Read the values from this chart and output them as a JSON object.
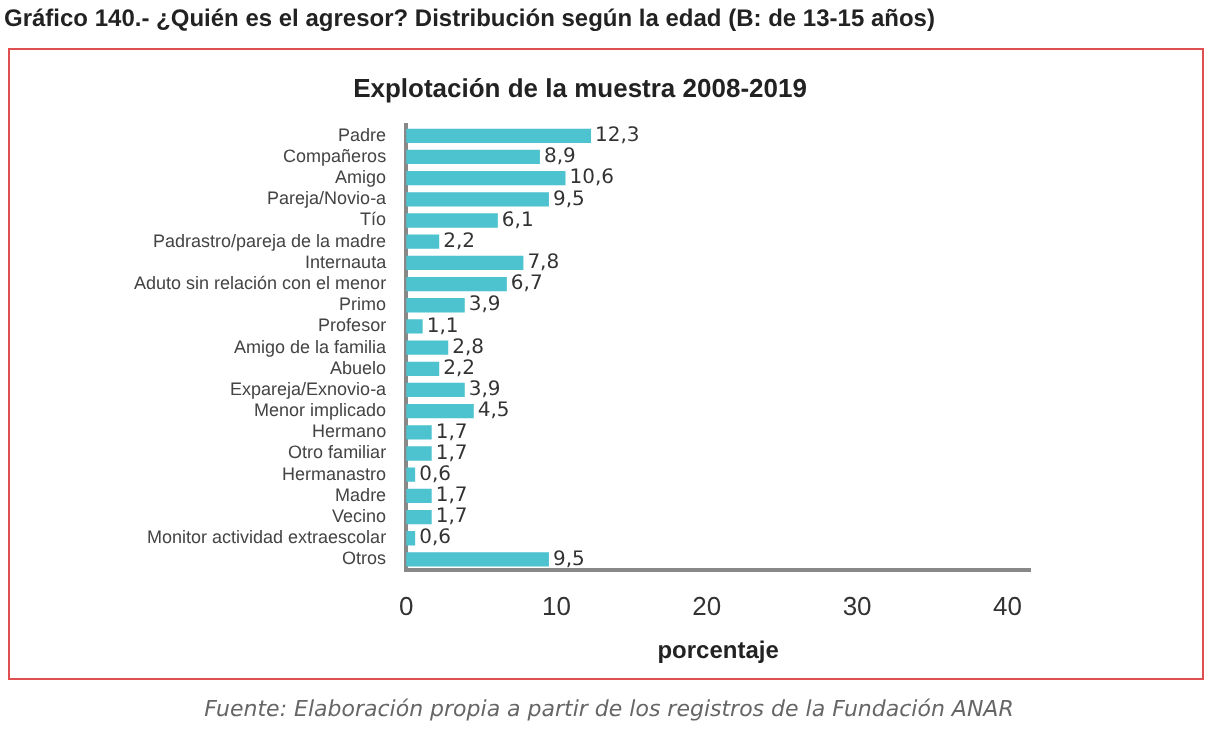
{
  "chart_data": {
    "type": "bar",
    "orientation": "horizontal",
    "title": "Gráfico 140.- ¿Quién es el agresor? Distribución según la edad (B: de 13-15 años)",
    "subtitle": "Explotación de la muestra 2008-2019",
    "xlabel": "porcentaje",
    "categories": [
      "Padre",
      "Compañeros",
      "Amigo",
      "Pareja/Novio-a",
      "Tío",
      "Padrastro/pareja de la madre",
      "Internauta",
      "Aduto sin relación con el menor",
      "Primo",
      "Profesor",
      "Amigo de la familia",
      "Abuelo",
      "Expareja/Exnovio-a",
      "Menor implicado",
      "Hermano",
      "Otro familiar",
      "Hermanastro",
      "Madre",
      "Vecino",
      "Monitor actividad extraescolar",
      "Otros"
    ],
    "values": [
      12.3,
      8.9,
      10.6,
      9.5,
      6.1,
      2.2,
      7.8,
      6.7,
      3.9,
      1.1,
      2.8,
      2.2,
      3.9,
      4.5,
      1.7,
      1.7,
      0.6,
      1.7,
      1.7,
      0.6,
      9.5
    ],
    "value_labels": [
      "12,3",
      "8,9",
      "10,6",
      "9,5",
      "6,1",
      "2,2",
      "7,8",
      "6,7",
      "3,9",
      "1,1",
      "2,8",
      "2,2",
      "3,9",
      "4,5",
      "1,7",
      "1,7",
      "0,6",
      "1,7",
      "1,7",
      "0,6",
      "9,5"
    ],
    "color": "#4cc3cf",
    "xlim": [
      0,
      41.5
    ],
    "xticks": [
      0,
      10,
      20,
      30,
      40
    ],
    "grid": false,
    "legend": false,
    "annotations": [
      "Fuente: Elaboración propia a partir de los registros de la Fundación ANAR"
    ]
  }
}
